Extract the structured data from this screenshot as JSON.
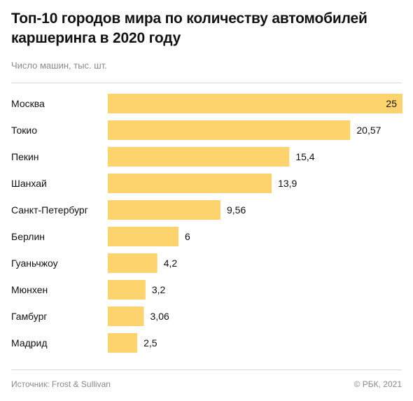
{
  "header": {
    "title": "Топ-10 городов мира по количеству автомобилей каршеринга в 2020 году",
    "subtitle": "Число машин, тыс. шт."
  },
  "footer": {
    "source": "Источник: Frost & Sullivan",
    "copyright": "© РБК, 2021"
  },
  "colors": {
    "bar": "#FDD36E",
    "text": "#111111",
    "muted": "#8a8a8a"
  },
  "chart_data": {
    "type": "bar",
    "orientation": "horizontal",
    "categories": [
      "Москва",
      "Токио",
      "Пекин",
      "Шанхай",
      "Санкт-Петербург",
      "Берлин",
      "Гуаньчжоу",
      "Мюнхен",
      "Гамбург",
      "Мадрид"
    ],
    "values": [
      25,
      20.57,
      15.4,
      13.9,
      9.56,
      6,
      4.2,
      3.2,
      3.06,
      2.5
    ],
    "value_labels": [
      "25",
      "20,57",
      "15,4",
      "13,9",
      "9,56",
      "6",
      "4,2",
      "3,2",
      "3,06",
      "2,5"
    ],
    "xlim": [
      0,
      25
    ],
    "grid": false,
    "legend": "none"
  }
}
